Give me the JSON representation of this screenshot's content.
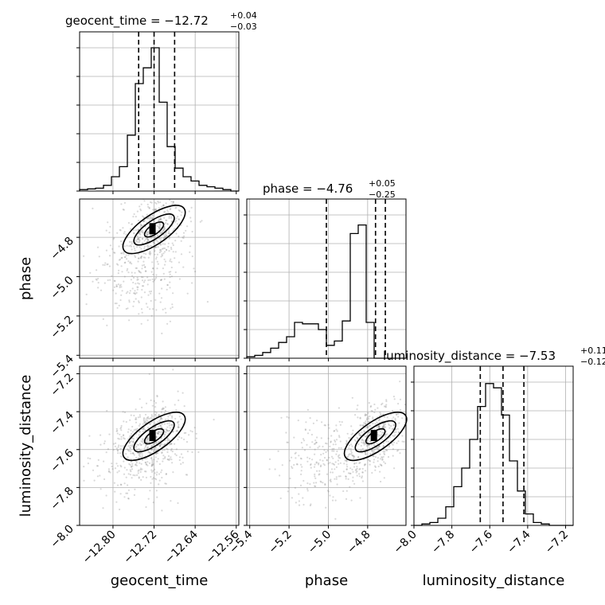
{
  "chart_data": {
    "type": "corner",
    "parameters": [
      "geocent_time",
      "phase",
      "luminosity_distance"
    ],
    "axis_labels": [
      "geocent_time",
      "phase",
      "luminosity_distance"
    ],
    "ranges": {
      "geocent_time": [
        -12.865,
        -12.555
      ],
      "phase": [
        -5.415,
        -4.605
      ],
      "luminosity_distance": [
        -8.0,
        -7.16
      ]
    },
    "ticks": {
      "geocent_time": [
        "−12.80",
        "−12.72",
        "−12.64",
        "−12.56"
      ],
      "phase": [
        "−5.4",
        "−5.2",
        "−5.0",
        "−4.8"
      ],
      "luminosity_distance": [
        "−8.0",
        "−7.8",
        "−7.6",
        "−7.4",
        "−7.2"
      ]
    },
    "tick_values": {
      "geocent_time": [
        -12.8,
        -12.72,
        -12.64,
        -12.56
      ],
      "phase": [
        -5.4,
        -5.2,
        -5.0,
        -4.8
      ],
      "luminosity_distance": [
        -8.0,
        -7.8,
        -7.6,
        -7.4,
        -7.2
      ]
    },
    "titles": {
      "geocent_time": {
        "prefix": "geocent_time = −12.72",
        "plus": "+0.04",
        "minus": "−0.03"
      },
      "phase": {
        "prefix": "phase = −4.76",
        "plus": "+0.05",
        "minus": "−0.25"
      },
      "luminosity_distance": {
        "prefix": "luminosity_distance = −7.53",
        "plus": "+0.11",
        "minus": "−0.12"
      }
    },
    "quantiles": {
      "geocent_time": [
        -12.75,
        -12.72,
        -12.68
      ],
      "phase": [
        -5.01,
        -4.76,
        -4.71
      ],
      "luminosity_distance": [
        -7.65,
        -7.53,
        -7.42
      ]
    },
    "histograms": {
      "geocent_time": {
        "bin_start": -12.865,
        "bin_width": 0.0155,
        "counts": [
          0.01,
          0.015,
          0.02,
          0.04,
          0.1,
          0.17,
          0.39,
          0.75,
          0.86,
          1.0,
          0.62,
          0.31,
          0.16,
          0.1,
          0.07,
          0.04,
          0.03,
          0.02,
          0.01,
          0.0
        ]
      },
      "phase": {
        "bin_start": -5.415,
        "bin_width": 0.0405,
        "counts": [
          0.01,
          0.02,
          0.04,
          0.07,
          0.11,
          0.15,
          0.25,
          0.24,
          0.24,
          0.2,
          0.09,
          0.12,
          0.26,
          0.87,
          0.93,
          0.25,
          0.0,
          0.0,
          0.0,
          0.0
        ]
      },
      "luminosity_distance": {
        "bin_start": -8.0,
        "bin_width": 0.042,
        "counts": [
          0.0,
          0.01,
          0.02,
          0.05,
          0.13,
          0.27,
          0.4,
          0.6,
          0.83,
          0.99,
          0.96,
          0.77,
          0.45,
          0.24,
          0.08,
          0.02,
          0.01,
          0.0,
          0.0,
          0.0
        ]
      }
    },
    "grid": true,
    "contour_color": "#000000",
    "point_color": "#808080"
  }
}
